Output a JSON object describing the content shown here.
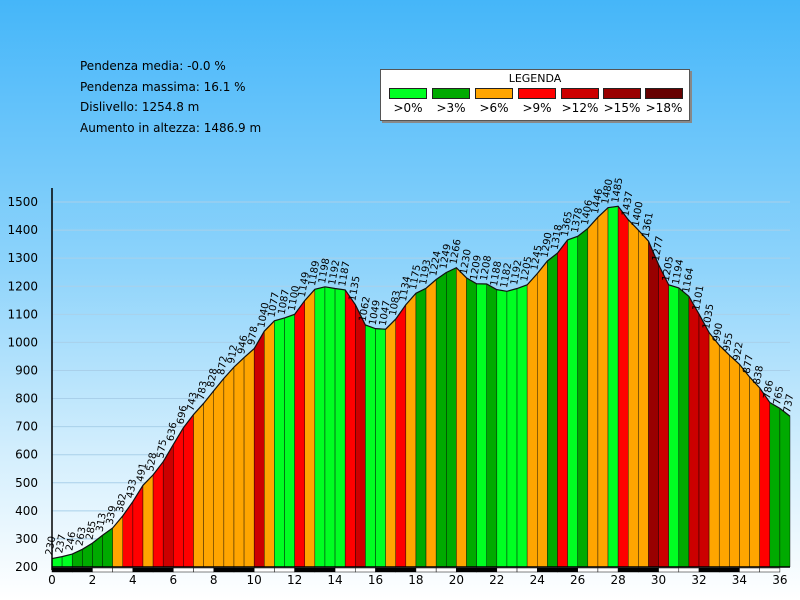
{
  "stats": {
    "line1": "Pendenza media: -0.0 %",
    "line2": "Pendenza massima: 16.1 %",
    "line3": "Dislivello: 1254.8 m",
    "line4": "Aumento in altezza: 1486.9 m"
  },
  "legend": {
    "title": "LEGENDA",
    "items": [
      {
        "label": ">0%",
        "color": "#00ff22"
      },
      {
        "label": ">3%",
        "color": "#00aa00"
      },
      {
        "label": ">6%",
        "color": "#ffa500"
      },
      {
        "label": ">9%",
        "color": "#ff0000"
      },
      {
        "label": ">12%",
        "color": "#cc0000"
      },
      {
        "label": ">15%",
        "color": "#990000"
      },
      {
        "label": ">18%",
        "color": "#660000"
      }
    ]
  },
  "chart_data": {
    "type": "area",
    "title": "",
    "xlabel": "",
    "ylabel": "",
    "xlim": [
      0,
      36.5
    ],
    "ylim": [
      200,
      1550
    ],
    "xticks": [
      0,
      2,
      4,
      6,
      8,
      10,
      12,
      14,
      16,
      18,
      20,
      22,
      24,
      26,
      28,
      30,
      32,
      34,
      36
    ],
    "yticks": [
      200,
      300,
      400,
      500,
      600,
      700,
      800,
      900,
      1000,
      1100,
      1200,
      1300,
      1400,
      1500
    ],
    "grid": true,
    "profile": [
      [
        0,
        230
      ],
      [
        0.5,
        237
      ],
      [
        1.0,
        246
      ],
      [
        1.5,
        263
      ],
      [
        2.0,
        285
      ],
      [
        2.5,
        313
      ],
      [
        3.0,
        339
      ],
      [
        3.5,
        382
      ],
      [
        4.0,
        433
      ],
      [
        4.5,
        491
      ],
      [
        5.0,
        528
      ],
      [
        5.5,
        575
      ],
      [
        6.0,
        636
      ],
      [
        6.5,
        696
      ],
      [
        7.0,
        743
      ],
      [
        7.5,
        783
      ],
      [
        8.0,
        828
      ],
      [
        8.5,
        872
      ],
      [
        9.0,
        912
      ],
      [
        9.5,
        946
      ],
      [
        10.0,
        978
      ],
      [
        10.5,
        1040
      ],
      [
        11.0,
        1077
      ],
      [
        11.5,
        1087
      ],
      [
        12.0,
        1100
      ],
      [
        12.5,
        1149
      ],
      [
        13.0,
        1189
      ],
      [
        13.5,
        1198
      ],
      [
        14.0,
        1192
      ],
      [
        14.5,
        1187
      ],
      [
        15.0,
        1135
      ],
      [
        15.5,
        1062
      ],
      [
        16.0,
        1049
      ],
      [
        16.5,
        1047
      ],
      [
        17.0,
        1083
      ],
      [
        17.5,
        1134
      ],
      [
        18.0,
        1175
      ],
      [
        18.5,
        1193
      ],
      [
        19.0,
        1224
      ],
      [
        19.5,
        1249
      ],
      [
        20.0,
        1266
      ],
      [
        20.5,
        1230
      ],
      [
        21.0,
        1209
      ],
      [
        21.5,
        1208
      ],
      [
        22.0,
        1188
      ],
      [
        22.5,
        1182
      ],
      [
        23.0,
        1192
      ],
      [
        23.5,
        1205
      ],
      [
        24.0,
        1245
      ],
      [
        24.5,
        1290
      ],
      [
        25.0,
        1318
      ],
      [
        25.5,
        1365
      ],
      [
        26.0,
        1378
      ],
      [
        26.5,
        1406
      ],
      [
        27.0,
        1446
      ],
      [
        27.5,
        1480
      ],
      [
        28.0,
        1485
      ],
      [
        28.5,
        1437
      ],
      [
        29.0,
        1400
      ],
      [
        29.5,
        1361
      ],
      [
        30.0,
        1277
      ],
      [
        30.5,
        1205
      ],
      [
        31.0,
        1194
      ],
      [
        31.5,
        1164
      ],
      [
        32.0,
        1101
      ],
      [
        32.5,
        1035
      ],
      [
        33.0,
        990
      ],
      [
        33.5,
        955
      ],
      [
        34.0,
        922
      ],
      [
        34.5,
        877
      ],
      [
        35.0,
        838
      ],
      [
        35.5,
        786
      ],
      [
        36.0,
        765
      ],
      [
        36.5,
        737
      ]
    ],
    "point_labels": [
      "230",
      "237",
      "246",
      "263",
      "285",
      "313",
      "339",
      "382",
      "433",
      "491",
      "528",
      "575",
      "636",
      "696",
      "743",
      "783",
      "828",
      "872",
      "912",
      "946",
      "978",
      "1040",
      "1077",
      "1087",
      "1100",
      "1149",
      "1189",
      "1198",
      "1192",
      "1187",
      "1135",
      "1062",
      "1049",
      "1047",
      "1083",
      "1134",
      "1175",
      "1193",
      "1224",
      "1249",
      "1266",
      "1230",
      "1209",
      "1208",
      "1188",
      "1182",
      "1192",
      "1205",
      "1245",
      "1290",
      "1318",
      "1365",
      "1378",
      "1406",
      "1446",
      "1480",
      "1485",
      "1437",
      "1400",
      "1361",
      "1277",
      "1205",
      "1194",
      "1164",
      "1101",
      "1035",
      "990",
      "955",
      "922",
      "877",
      "838",
      "786",
      "765",
      "737"
    ]
  }
}
